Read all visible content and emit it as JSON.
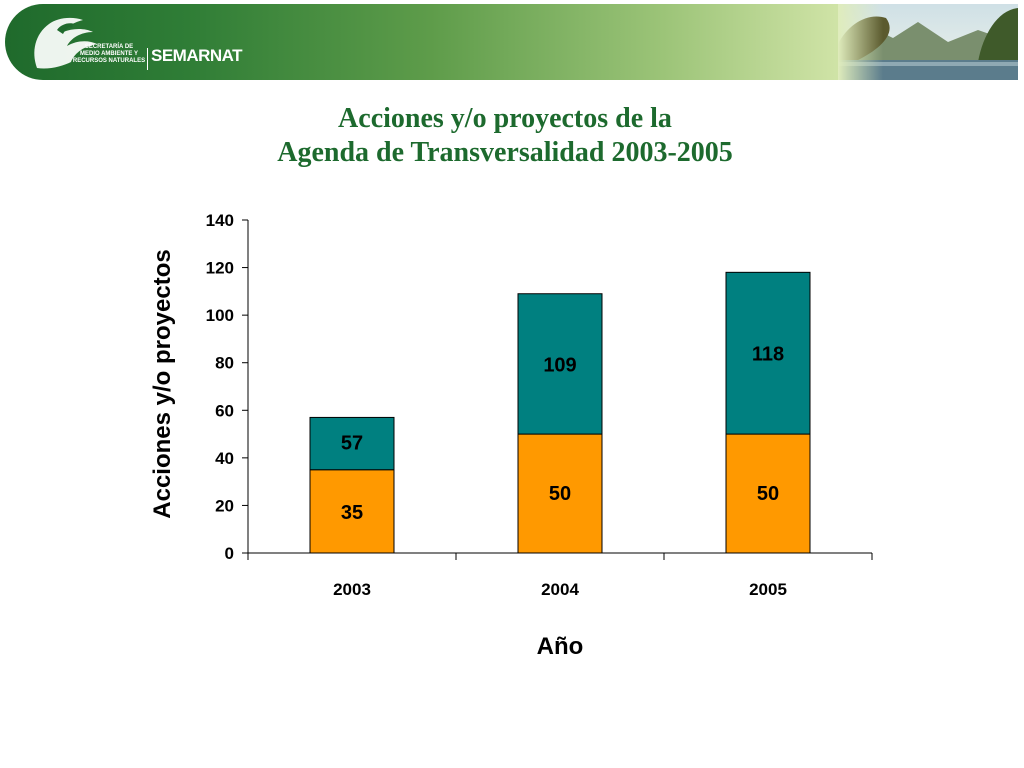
{
  "header": {
    "agency_lines": [
      "SECRETARÍA DE",
      "MEDIO AMBIENTE Y",
      "RECURSOS NATURALES"
    ],
    "brand": "SEMARNAT",
    "emblem_icon": "eagle-emblem-icon",
    "landscape_icon": "lake-landscape-icon"
  },
  "title_lines": [
    "Acciones y/o proyectos de la",
    "Agenda de Transversalidad 2003-2005"
  ],
  "colors": {
    "title": "#1d6a2e",
    "bottom_series": "#ff9900",
    "top_series": "#008080"
  },
  "chart_data": {
    "type": "bar",
    "stacked": true,
    "categories": [
      "2003",
      "2004",
      "2005"
    ],
    "series": [
      {
        "values": [
          35,
          50,
          50
        ],
        "labels": [
          "35",
          "50",
          "50"
        ],
        "color": "#ff9900"
      },
      {
        "totals": [
          57,
          109,
          118
        ],
        "labels": [
          "57",
          "109",
          "118"
        ],
        "color": "#008080"
      }
    ],
    "xlabel": "Año",
    "ylabel": "Acciones y/o proyectos",
    "ylim": [
      0,
      140
    ],
    "yticks": [
      "0",
      "20",
      "40",
      "60",
      "80",
      "100",
      "120",
      "140"
    ],
    "grid": false,
    "legend": "none"
  }
}
